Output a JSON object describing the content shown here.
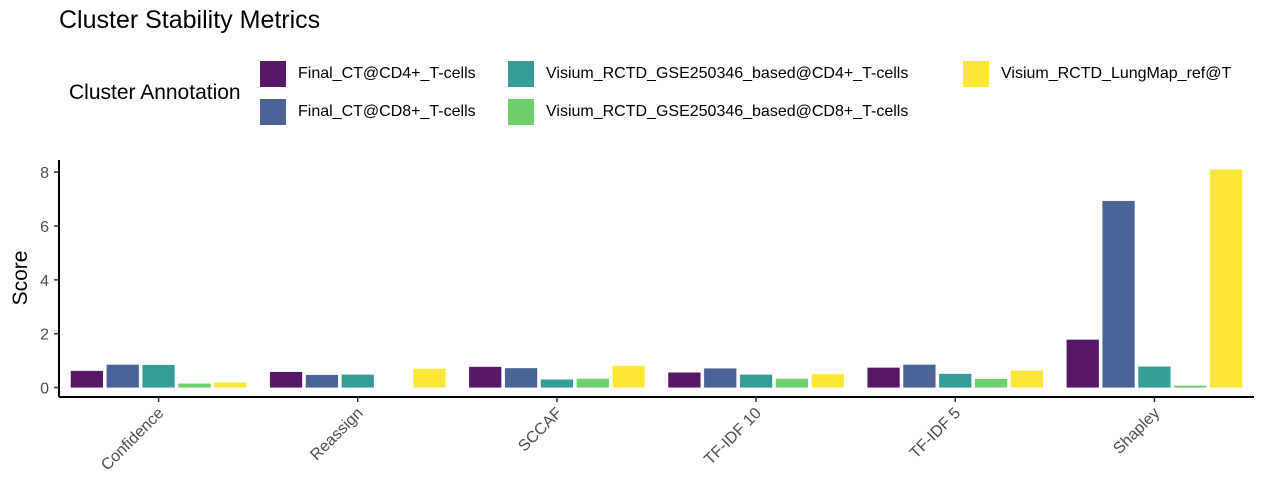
{
  "chart_data": {
    "type": "bar",
    "title": "Cluster Stability Metrics",
    "xlabel": "",
    "ylabel": "Score",
    "ylim": [
      -0.35,
      8.45
    ],
    "yticks": [
      0,
      2,
      4,
      6,
      8
    ],
    "grid": false,
    "legend": {
      "title": "Cluster Annotation",
      "position": "top"
    },
    "categories": [
      "Confidence",
      "Reassign",
      "SCCAF",
      "TF-IDF 10",
      "TF-IDF 5",
      "Shapley"
    ],
    "series": [
      {
        "name": "Final_CT@CD4+_T-cells",
        "color": "#581868",
        "values": [
          0.62,
          0.58,
          0.77,
          0.56,
          0.74,
          1.78
        ]
      },
      {
        "name": "Final_CT@CD8+_T-cells",
        "color": "#4C6398",
        "values": [
          0.85,
          0.47,
          0.72,
          0.71,
          0.85,
          6.93
        ]
      },
      {
        "name": "Visium_RCTD_GSE250346_based@CD4+_T-cells",
        "color": "#369C97",
        "values": [
          0.84,
          0.48,
          0.3,
          0.48,
          0.51,
          0.78
        ]
      },
      {
        "name": "Visium_RCTD_GSE250346_based@CD8+_T-cells",
        "color": "#6ECF6C",
        "values": [
          0.15,
          0.0,
          0.33,
          0.33,
          0.32,
          0.07
        ]
      },
      {
        "name": "Visium_RCTD_LungMap_ref@T",
        "color": "#FDE838",
        "values": [
          0.19,
          0.7,
          0.81,
          0.5,
          0.63,
          8.1
        ]
      }
    ]
  }
}
